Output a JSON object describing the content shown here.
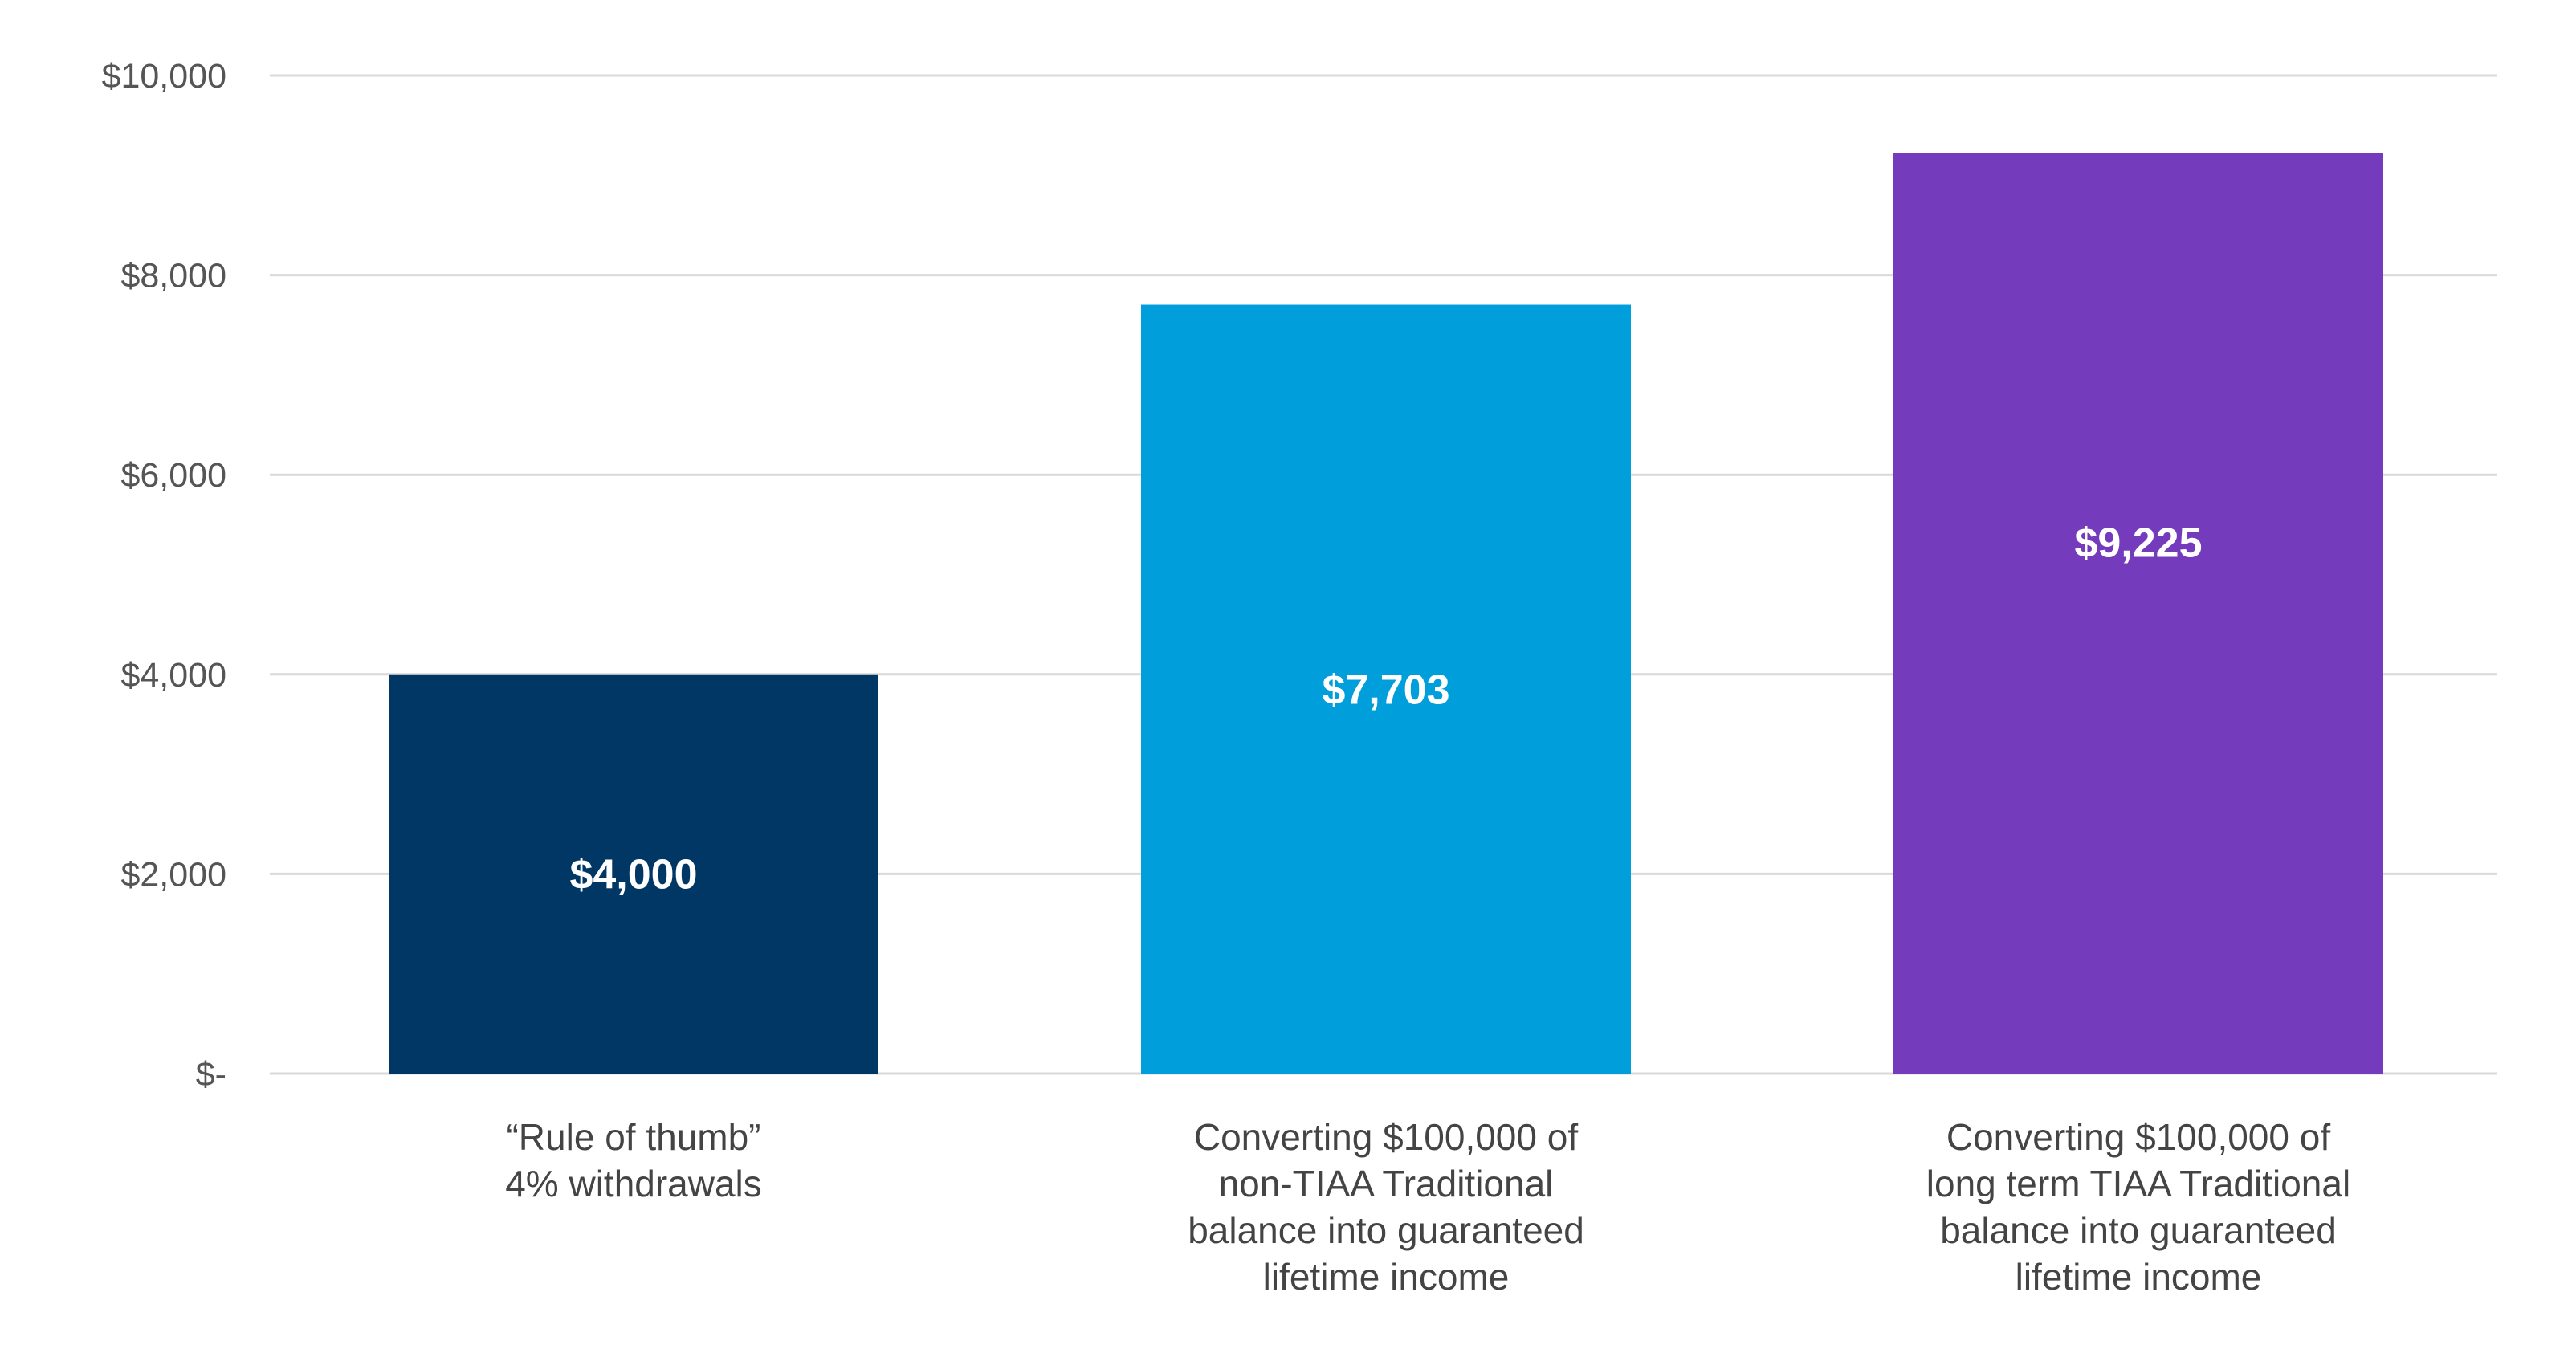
{
  "chart_data": {
    "type": "bar",
    "title": "",
    "xlabel": "",
    "ylabel": "",
    "ylim": [
      0,
      10000
    ],
    "y_ticks": [
      {
        "value": 0,
        "label": "$-"
      },
      {
        "value": 2000,
        "label": "$2,000"
      },
      {
        "value": 4000,
        "label": "$4,000"
      },
      {
        "value": 6000,
        "label": "$6,000"
      },
      {
        "value": 8000,
        "label": "$8,000"
      },
      {
        "value": 10000,
        "label": "$10,000"
      }
    ],
    "grid": true,
    "legend": "none",
    "categories": [
      [
        "“Rule of thumb”",
        "4% withdrawals"
      ],
      [
        "Converting $100,000 of",
        "non-TIAA Traditional",
        "balance into guaranteed",
        "lifetime income"
      ],
      [
        "Converting $100,000 of",
        "long term TIAA Traditional",
        "balance into guaranteed",
        "lifetime income"
      ]
    ],
    "values": [
      4000,
      7703,
      9225
    ],
    "data_labels": [
      "$4,000",
      "$7,703",
      "$9,225"
    ],
    "colors": [
      "#003764",
      "#009FDB",
      "#753BBD"
    ],
    "gridline_color": "#D9D9D9"
  }
}
